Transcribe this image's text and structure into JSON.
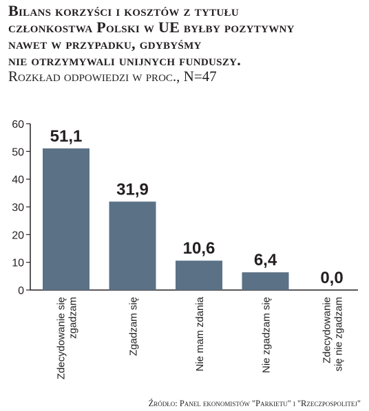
{
  "title_lines": [
    "Bilans korzyści i kosztów z tytułu",
    "członkostwa Polski w UE byłby pozytywny",
    "nawet w przypadku, gdybyśmy",
    "nie otrzymywali unijnych funduszy."
  ],
  "subtitle": "Rozkład odpowiedzi w proc., N=47",
  "source": "Źródło: Panel ekonomistów \"Parkietu\" i \"Rzeczpospolitej\"",
  "chart_data": {
    "type": "bar",
    "categories": [
      [
        "Zdecydowanie się",
        "zgadzam"
      ],
      [
        "Zgadzam się"
      ],
      [
        "Nie mam zdania"
      ],
      [
        "Nie zgadzam się"
      ],
      [
        "Zdecydowanie",
        "się nie zgadzam"
      ]
    ],
    "values": [
      51.1,
      31.9,
      10.6,
      6.4,
      0.0
    ],
    "value_labels": [
      "51,1",
      "31,9",
      "10,6",
      "6,4",
      "0,0"
    ],
    "ylim": [
      0,
      60
    ],
    "yticks": [
      0,
      10,
      20,
      30,
      40,
      50,
      60
    ],
    "grid": false,
    "colors": {
      "bar": "#5b7186",
      "axis": "#231f20",
      "text": "#231f20"
    }
  }
}
